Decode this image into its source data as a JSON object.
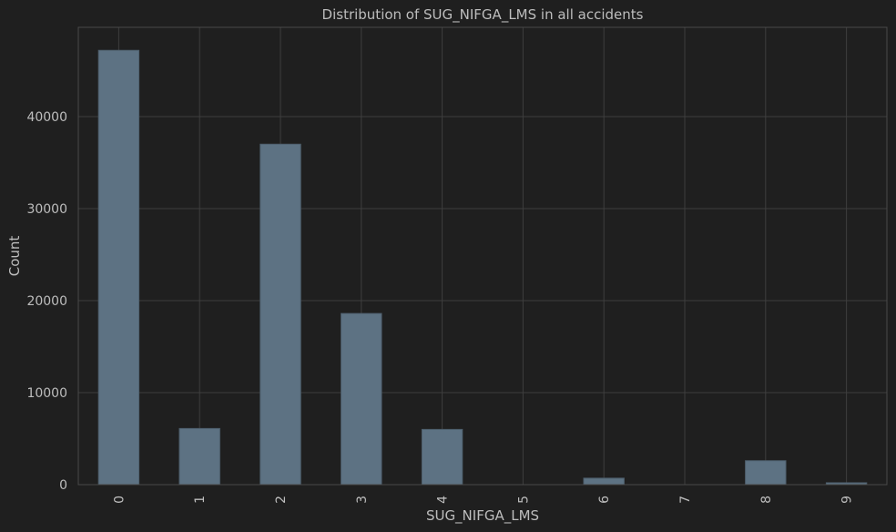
{
  "chart_data": {
    "type": "bar",
    "title": "Distribution of SUG_NIFGA_LMS in all accidents",
    "xlabel": "SUG_NIFGA_LMS",
    "ylabel": "Count",
    "categories": [
      "0",
      "1",
      "2",
      "3",
      "4",
      "5",
      "6",
      "7",
      "8",
      "9"
    ],
    "values": [
      47200,
      6100,
      37000,
      18600,
      6000,
      0,
      700,
      0,
      2600,
      200
    ],
    "ylim": [
      0,
      49700
    ],
    "yticks": [
      0,
      10000,
      20000,
      30000,
      40000
    ],
    "ytick_labels": [
      "0",
      "10000",
      "20000",
      "30000",
      "40000"
    ],
    "grid": true,
    "legend": "none",
    "colors": {
      "background": "#1f1f1f",
      "bar": "#5d7283",
      "grid": "#3e3e3e",
      "text": "#bdbdbd"
    }
  }
}
